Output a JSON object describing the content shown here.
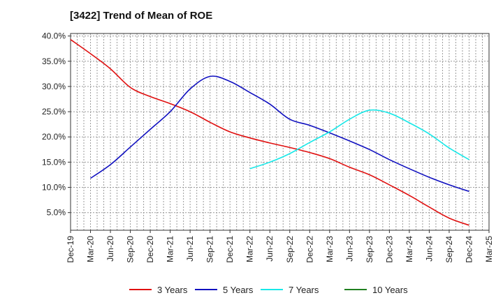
{
  "chart_data": {
    "type": "line",
    "title": "[3422]  Trend of Mean of ROE",
    "xlabel": "",
    "ylabel": "",
    "x_ticks": [
      "Dec-19",
      "Mar-20",
      "Jun-20",
      "Sep-20",
      "Dec-20",
      "Mar-21",
      "Jun-21",
      "Sep-21",
      "Dec-21",
      "Mar-22",
      "Jun-22",
      "Sep-22",
      "Dec-22",
      "Mar-23",
      "Jun-23",
      "Sep-23",
      "Dec-23",
      "Mar-24",
      "Jun-24",
      "Sep-24",
      "Dec-24",
      "Mar-25"
    ],
    "y_ticks": [
      "5.0%",
      "10.0%",
      "15.0%",
      "20.0%",
      "25.0%",
      "30.0%",
      "35.0%",
      "40.0%"
    ],
    "y_tick_values": [
      5,
      10,
      15,
      20,
      25,
      30,
      35,
      40
    ],
    "ylim": [
      1.5,
      40.5
    ],
    "grid": true,
    "legend_position": "bottom",
    "series": [
      {
        "name": "3 Years",
        "color": "#e01010",
        "x": [
          "Dec-19",
          "Mar-20",
          "Jun-20",
          "Sep-20",
          "Dec-20",
          "Mar-21",
          "Jun-21",
          "Sep-21",
          "Dec-21",
          "Mar-22",
          "Jun-22",
          "Sep-22",
          "Dec-22",
          "Mar-23",
          "Jun-23",
          "Sep-23",
          "Dec-23",
          "Mar-24",
          "Jun-24",
          "Sep-24",
          "Dec-24"
        ],
        "values": [
          39.3,
          36.5,
          33.5,
          29.8,
          28.0,
          26.6,
          25.0,
          22.9,
          21.0,
          19.8,
          18.8,
          17.9,
          16.9,
          15.7,
          14.0,
          12.5,
          10.5,
          8.4,
          6.1,
          3.9,
          2.5
        ]
      },
      {
        "name": "5 Years",
        "color": "#1010c0",
        "x": [
          "Mar-20",
          "Jun-20",
          "Sep-20",
          "Dec-20",
          "Mar-21",
          "Jun-21",
          "Sep-21",
          "Dec-21",
          "Mar-22",
          "Jun-22",
          "Sep-22",
          "Dec-22",
          "Mar-23",
          "Jun-23",
          "Sep-23",
          "Dec-23",
          "Mar-24",
          "Jun-24",
          "Sep-24",
          "Dec-24"
        ],
        "values": [
          11.8,
          14.5,
          18.0,
          21.5,
          25.0,
          29.5,
          32.0,
          31.0,
          28.8,
          26.5,
          23.5,
          22.3,
          20.8,
          19.2,
          17.5,
          15.5,
          13.7,
          12.0,
          10.5,
          9.2
        ]
      },
      {
        "name": "7 Years",
        "color": "#18e8e8",
        "x": [
          "Mar-22",
          "Jun-22",
          "Sep-22",
          "Dec-22",
          "Mar-23",
          "Jun-23",
          "Sep-23",
          "Dec-23",
          "Mar-24",
          "Jun-24",
          "Sep-24",
          "Dec-24"
        ],
        "values": [
          13.7,
          15.0,
          16.7,
          18.9,
          21.0,
          23.5,
          25.3,
          24.7,
          22.8,
          20.6,
          17.8,
          15.5
        ]
      },
      {
        "name": "10 Years",
        "color": "#208020",
        "x": [],
        "values": []
      }
    ]
  }
}
